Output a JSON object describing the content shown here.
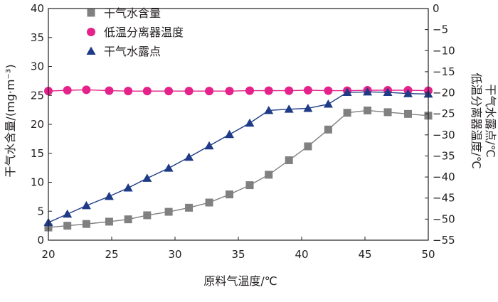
{
  "chart_data": {
    "type": "line",
    "xlabel": "原料气温度/℃",
    "ylabel_left": "干气水含量/(mg·m⁻³)",
    "ylabel_right_1": "低温分离器温度/℃",
    "ylabel_right_2": "干气水露点/℃",
    "xlim": [
      20,
      50
    ],
    "ylim_left": [
      0,
      40
    ],
    "ylim_right": [
      -55,
      0
    ],
    "x_ticks": [
      "20",
      "25",
      "30",
      "35",
      "40",
      "45",
      "50"
    ],
    "y_left_ticks": [
      "0",
      "5",
      "10",
      "15",
      "20",
      "25",
      "30",
      "35",
      "40"
    ],
    "y_right_ticks": [
      "0",
      "−5",
      "−10",
      "−15",
      "−20",
      "−25",
      "−30",
      "−35",
      "−40",
      "−45",
      "−50",
      "−55"
    ],
    "grid": false,
    "legend_position": "top-center",
    "series": [
      {
        "name": "干气水含量",
        "axis": "left",
        "marker": "square",
        "color": "#808080",
        "x": [
          20,
          21.5,
          23,
          24.8,
          26.3,
          27.8,
          29.5,
          31.1,
          32.7,
          34.3,
          35.9,
          37.4,
          39,
          40.5,
          42.1,
          43.6,
          45.2,
          46.8,
          48.4,
          50
        ],
        "y": [
          2.2,
          2.5,
          2.8,
          3.2,
          3.6,
          4.3,
          4.9,
          5.6,
          6.5,
          7.9,
          9.5,
          11.3,
          13.8,
          16.2,
          19.1,
          22.0,
          22.4,
          22.1,
          21.8,
          21.5
        ]
      },
      {
        "name": "低温分离器温度",
        "axis": "right",
        "marker": "circle",
        "color": "#e5218a",
        "x": [
          20,
          21.5,
          23,
          24.8,
          26.3,
          27.8,
          29.5,
          31.1,
          32.7,
          34.3,
          35.9,
          37.4,
          39,
          40.5,
          42.1,
          43.6,
          45.2,
          46.8,
          48.4,
          50
        ],
        "y": [
          -19.6,
          -19.4,
          -19.3,
          -19.5,
          -19.6,
          -19.6,
          -19.6,
          -19.6,
          -19.6,
          -19.6,
          -19.5,
          -19.5,
          -19.5,
          -19.4,
          -19.5,
          -19.5,
          -19.4,
          -19.4,
          -19.4,
          -19.5
        ]
      },
      {
        "name": "干气水露点",
        "axis": "right",
        "marker": "triangle",
        "color": "#1f3b87",
        "x": [
          20,
          21.5,
          23,
          24.8,
          26.3,
          27.8,
          29.5,
          31.1,
          32.7,
          34.3,
          35.9,
          37.4,
          39,
          40.5,
          42.1,
          43.6,
          45.2,
          46.8,
          48.4,
          50
        ],
        "y": [
          -50.8,
          -48.8,
          -46.8,
          -44.6,
          -42.6,
          -40.3,
          -37.9,
          -35.3,
          -32.6,
          -29.9,
          -27.2,
          -24.2,
          -23.9,
          -23.7,
          -22.7,
          -19.9,
          -19.8,
          -19.9,
          -20.2,
          -20.3
        ]
      }
    ]
  }
}
